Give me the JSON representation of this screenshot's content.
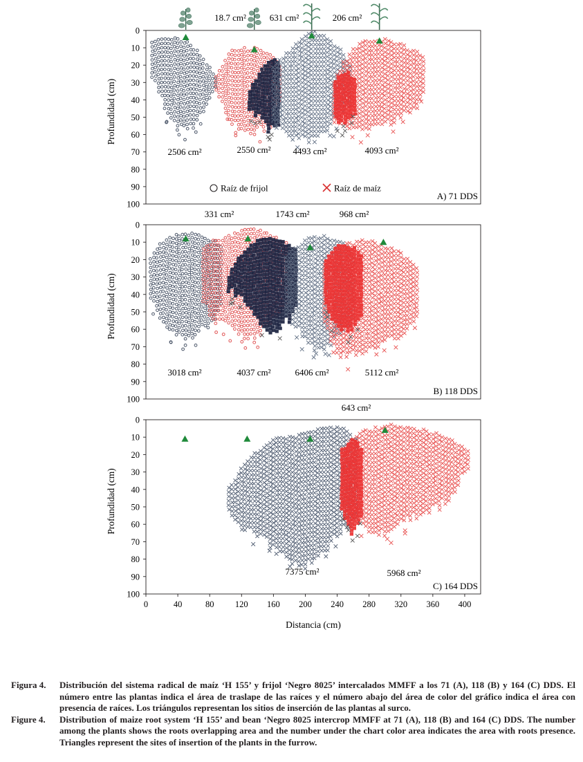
{
  "chart_data": [
    {
      "type": "scatter",
      "panel_label": "A) 71 DDS",
      "xlabel": "",
      "ylabel": "Profundidad (cm)",
      "xlim": [
        0,
        420
      ],
      "ylim": [
        100,
        0
      ],
      "y_ticks": [
        "0",
        "10",
        "20",
        "30",
        "40",
        "50",
        "60",
        "70",
        "80",
        "90",
        "100"
      ],
      "overlap_areas": [
        "18.7 cm²",
        "631 cm²",
        "206 cm²"
      ],
      "root_areas": [
        "2506 cm²",
        "2550 cm²",
        "4493 cm²",
        "4093 cm²"
      ],
      "plant_sites": [
        {
          "x": 50,
          "y": 4
        },
        {
          "x": 136,
          "y": 11
        },
        {
          "x": 208,
          "y": 3
        },
        {
          "x": 293,
          "y": 6
        }
      ],
      "plant_icons": [
        "bean-plant",
        "bean-plant",
        "maize-plant",
        "maize-plant"
      ],
      "legend": [
        "Raíz de frijol",
        "Raíz de maíz"
      ],
      "regions": [
        {
          "name": "frijol",
          "kind": "bean",
          "color": "#4a5568",
          "x": [
            8,
            96
          ],
          "top": [
            6,
            4,
            4,
            5,
            7,
            12,
            18,
            26,
            35
          ],
          "bottom": [
            25,
            40,
            52,
            56,
            57,
            55,
            45,
            35,
            30
          ]
        },
        {
          "name": "frijol",
          "kind": "bean",
          "color": "#e05555",
          "x": [
            88,
            170
          ],
          "top": [
            26,
            18,
            12,
            11,
            11,
            11,
            13,
            15,
            22
          ],
          "bottom": [
            38,
            45,
            55,
            58,
            60,
            59,
            56,
            48,
            40
          ]
        },
        {
          "name": "frijol dense",
          "kind": "dense",
          "color": "#1b2340",
          "x": [
            130,
            168
          ],
          "top": [
            36,
            30,
            26,
            20,
            17,
            16,
            18
          ],
          "bottom": [
            46,
            48,
            47,
            52,
            58,
            57,
            55
          ]
        },
        {
          "name": "maíz",
          "kind": "maize",
          "color": "#5f6d82",
          "x": [
            160,
            256
          ],
          "top": [
            22,
            16,
            10,
            6,
            1,
            3,
            6,
            12,
            20
          ],
          "bottom": [
            52,
            58,
            62,
            64,
            63,
            60,
            56,
            50,
            45
          ]
        },
        {
          "name": "maíz",
          "kind": "maize",
          "color": "#e8504f",
          "x": [
            236,
            348
          ],
          "top": [
            30,
            20,
            12,
            8,
            6,
            5,
            6,
            8,
            10,
            12,
            16
          ],
          "bottom": [
            52,
            55,
            56,
            58,
            57,
            56,
            54,
            52,
            50,
            46,
            36
          ]
        },
        {
          "name": "maíz dense",
          "kind": "dense",
          "color": "#ec3232",
          "x": [
            238,
            262
          ],
          "top": [
            30,
            26,
            25,
            28
          ],
          "bottom": [
            52,
            54,
            50,
            46
          ]
        }
      ]
    },
    {
      "type": "scatter",
      "panel_label": "B) 118 DDS",
      "xlabel": "",
      "ylabel": "Profundidad (cm)",
      "xlim": [
        0,
        420
      ],
      "ylim": [
        100,
        0
      ],
      "y_ticks": [
        "0",
        "10",
        "20",
        "30",
        "40",
        "50",
        "60",
        "70",
        "80",
        "90",
        "100"
      ],
      "overlap_areas": [
        "331 cm²",
        "1743 cm²",
        "968 cm²"
      ],
      "root_areas": [
        "3018 cm²",
        "4037 cm²",
        "6406 cm²",
        "5112 cm²"
      ],
      "plant_sites": [
        {
          "x": 50,
          "y": 8
        },
        {
          "x": 128,
          "y": 8
        },
        {
          "x": 206,
          "y": 13
        },
        {
          "x": 298,
          "y": 10
        }
      ],
      "regions": [
        {
          "name": "frijol",
          "kind": "bean",
          "color": "#4a5568",
          "x": [
            6,
            96
          ],
          "top": [
            20,
            12,
            8,
            6,
            5,
            6,
            8,
            10,
            14
          ],
          "bottom": [
            42,
            55,
            62,
            66,
            66,
            64,
            60,
            55,
            48
          ]
        },
        {
          "name": "frijol",
          "kind": "bean",
          "color": "#e05555",
          "x": [
            72,
            178
          ],
          "top": [
            14,
            10,
            8,
            7,
            3,
            2,
            3,
            5,
            8,
            12
          ],
          "bottom": [
            45,
            55,
            58,
            60,
            65,
            66,
            64,
            58,
            52,
            45
          ]
        },
        {
          "name": "frijol dense",
          "kind": "dense",
          "color": "#1b2340",
          "x": [
            104,
            190
          ],
          "top": [
            30,
            20,
            14,
            10,
            9,
            8,
            10,
            12,
            14
          ],
          "bottom": [
            38,
            40,
            44,
            50,
            58,
            62,
            60,
            55,
            44
          ]
        },
        {
          "name": "maíz",
          "kind": "maize",
          "color": "#5f6d82",
          "x": [
            176,
            260
          ],
          "top": [
            20,
            14,
            10,
            8,
            7,
            8,
            10,
            12,
            18
          ],
          "bottom": [
            50,
            58,
            66,
            70,
            72,
            70,
            66,
            60,
            55
          ]
        },
        {
          "name": "maíz",
          "kind": "maize",
          "color": "#e8504f",
          "x": [
            224,
            340
          ],
          "top": [
            24,
            16,
            12,
            11,
            10,
            10,
            12,
            14,
            16,
            20,
            24
          ],
          "bottom": [
            60,
            70,
            76,
            76,
            74,
            72,
            70,
            68,
            65,
            60,
            56
          ]
        },
        {
          "name": "maíz dense",
          "kind": "dense",
          "color": "#ec3232",
          "x": [
            226,
            272
          ],
          "top": [
            20,
            15,
            13,
            12,
            13,
            15,
            20
          ],
          "bottom": [
            46,
            55,
            60,
            62,
            62,
            58,
            52
          ]
        }
      ]
    },
    {
      "type": "scatter",
      "panel_label": "C) 164 DDS",
      "xlabel": "Distancia (cm)",
      "ylabel": "Profundidad (cm)",
      "xlim": [
        0,
        420
      ],
      "ylim": [
        100,
        0
      ],
      "x_ticks": [
        "0",
        "40",
        "80",
        "120",
        "160",
        "200",
        "240",
        "280",
        "320",
        "360",
        "400"
      ],
      "y_ticks": [
        "0",
        "10",
        "20",
        "30",
        "40",
        "50",
        "60",
        "70",
        "80",
        "90",
        "100"
      ],
      "overlap_areas": [
        "643 cm²"
      ],
      "root_areas": [
        "7375 cm²",
        "5968 cm²"
      ],
      "plant_sites": [
        {
          "x": 49,
          "y": 11
        },
        {
          "x": 127,
          "y": 11
        },
        {
          "x": 206,
          "y": 11
        },
        {
          "x": 300,
          "y": 6
        }
      ],
      "regions": [
        {
          "name": "frijol+maíz",
          "kind": "maize",
          "color": "#4e5b70",
          "x": [
            104,
            264
          ],
          "top": [
            40,
            28,
            20,
            14,
            10,
            10,
            8,
            6,
            5,
            6,
            12
          ],
          "bottom": [
            52,
            62,
            66,
            70,
            76,
            82,
            84,
            80,
            72,
            62,
            58
          ]
        },
        {
          "name": "maíz",
          "kind": "maize",
          "color": "#e8504f",
          "x": [
            248,
            404
          ],
          "top": [
            16,
            10,
            7,
            5,
            4,
            4,
            5,
            6,
            8,
            10,
            14,
            18
          ],
          "bottom": [
            52,
            58,
            64,
            68,
            66,
            60,
            56,
            54,
            52,
            48,
            40,
            28
          ]
        },
        {
          "name": "maíz dense",
          "kind": "dense",
          "color": "#ec3232",
          "x": [
            246,
            272
          ],
          "top": [
            18,
            14,
            12,
            14,
            20
          ],
          "bottom": [
            50,
            58,
            66,
            60,
            52
          ]
        }
      ]
    }
  ],
  "caption": {
    "es_label": "Figura 4.",
    "es_text": "Distribución del sistema radical de maíz ‘H 155’ y frijol ‘Negro 8025’ intercalados MMFF a los 71 (A), 118 (B) y 164 (C) DDS. El número entre las plantas indica el área de traslape de las raíces y el número abajo del área de color del gráfico indica el área con presencia de raíces. Los triángulos representan los sitios de inserción de las plantas al surco.",
    "en_label": "Figure 4.",
    "en_text": "Distribution of maize root system ‘H 155’ and bean ‘Negro 8025 intercrop MMFF at 71 (A), 118 (B) and 164 (C) DDS. The number among the plants shows the roots overlapping area and the number under the chart color area indicates the area with roots presence. Triangles represent the sites of insertion of the plants in the furrow."
  },
  "colors": {
    "bean": "#4a5568",
    "bean_red": "#e05555",
    "dense_bean": "#1b2340",
    "maize_red": "#e8504f",
    "triangle": "#1f8a3a",
    "legend_cross": "#d83030"
  }
}
